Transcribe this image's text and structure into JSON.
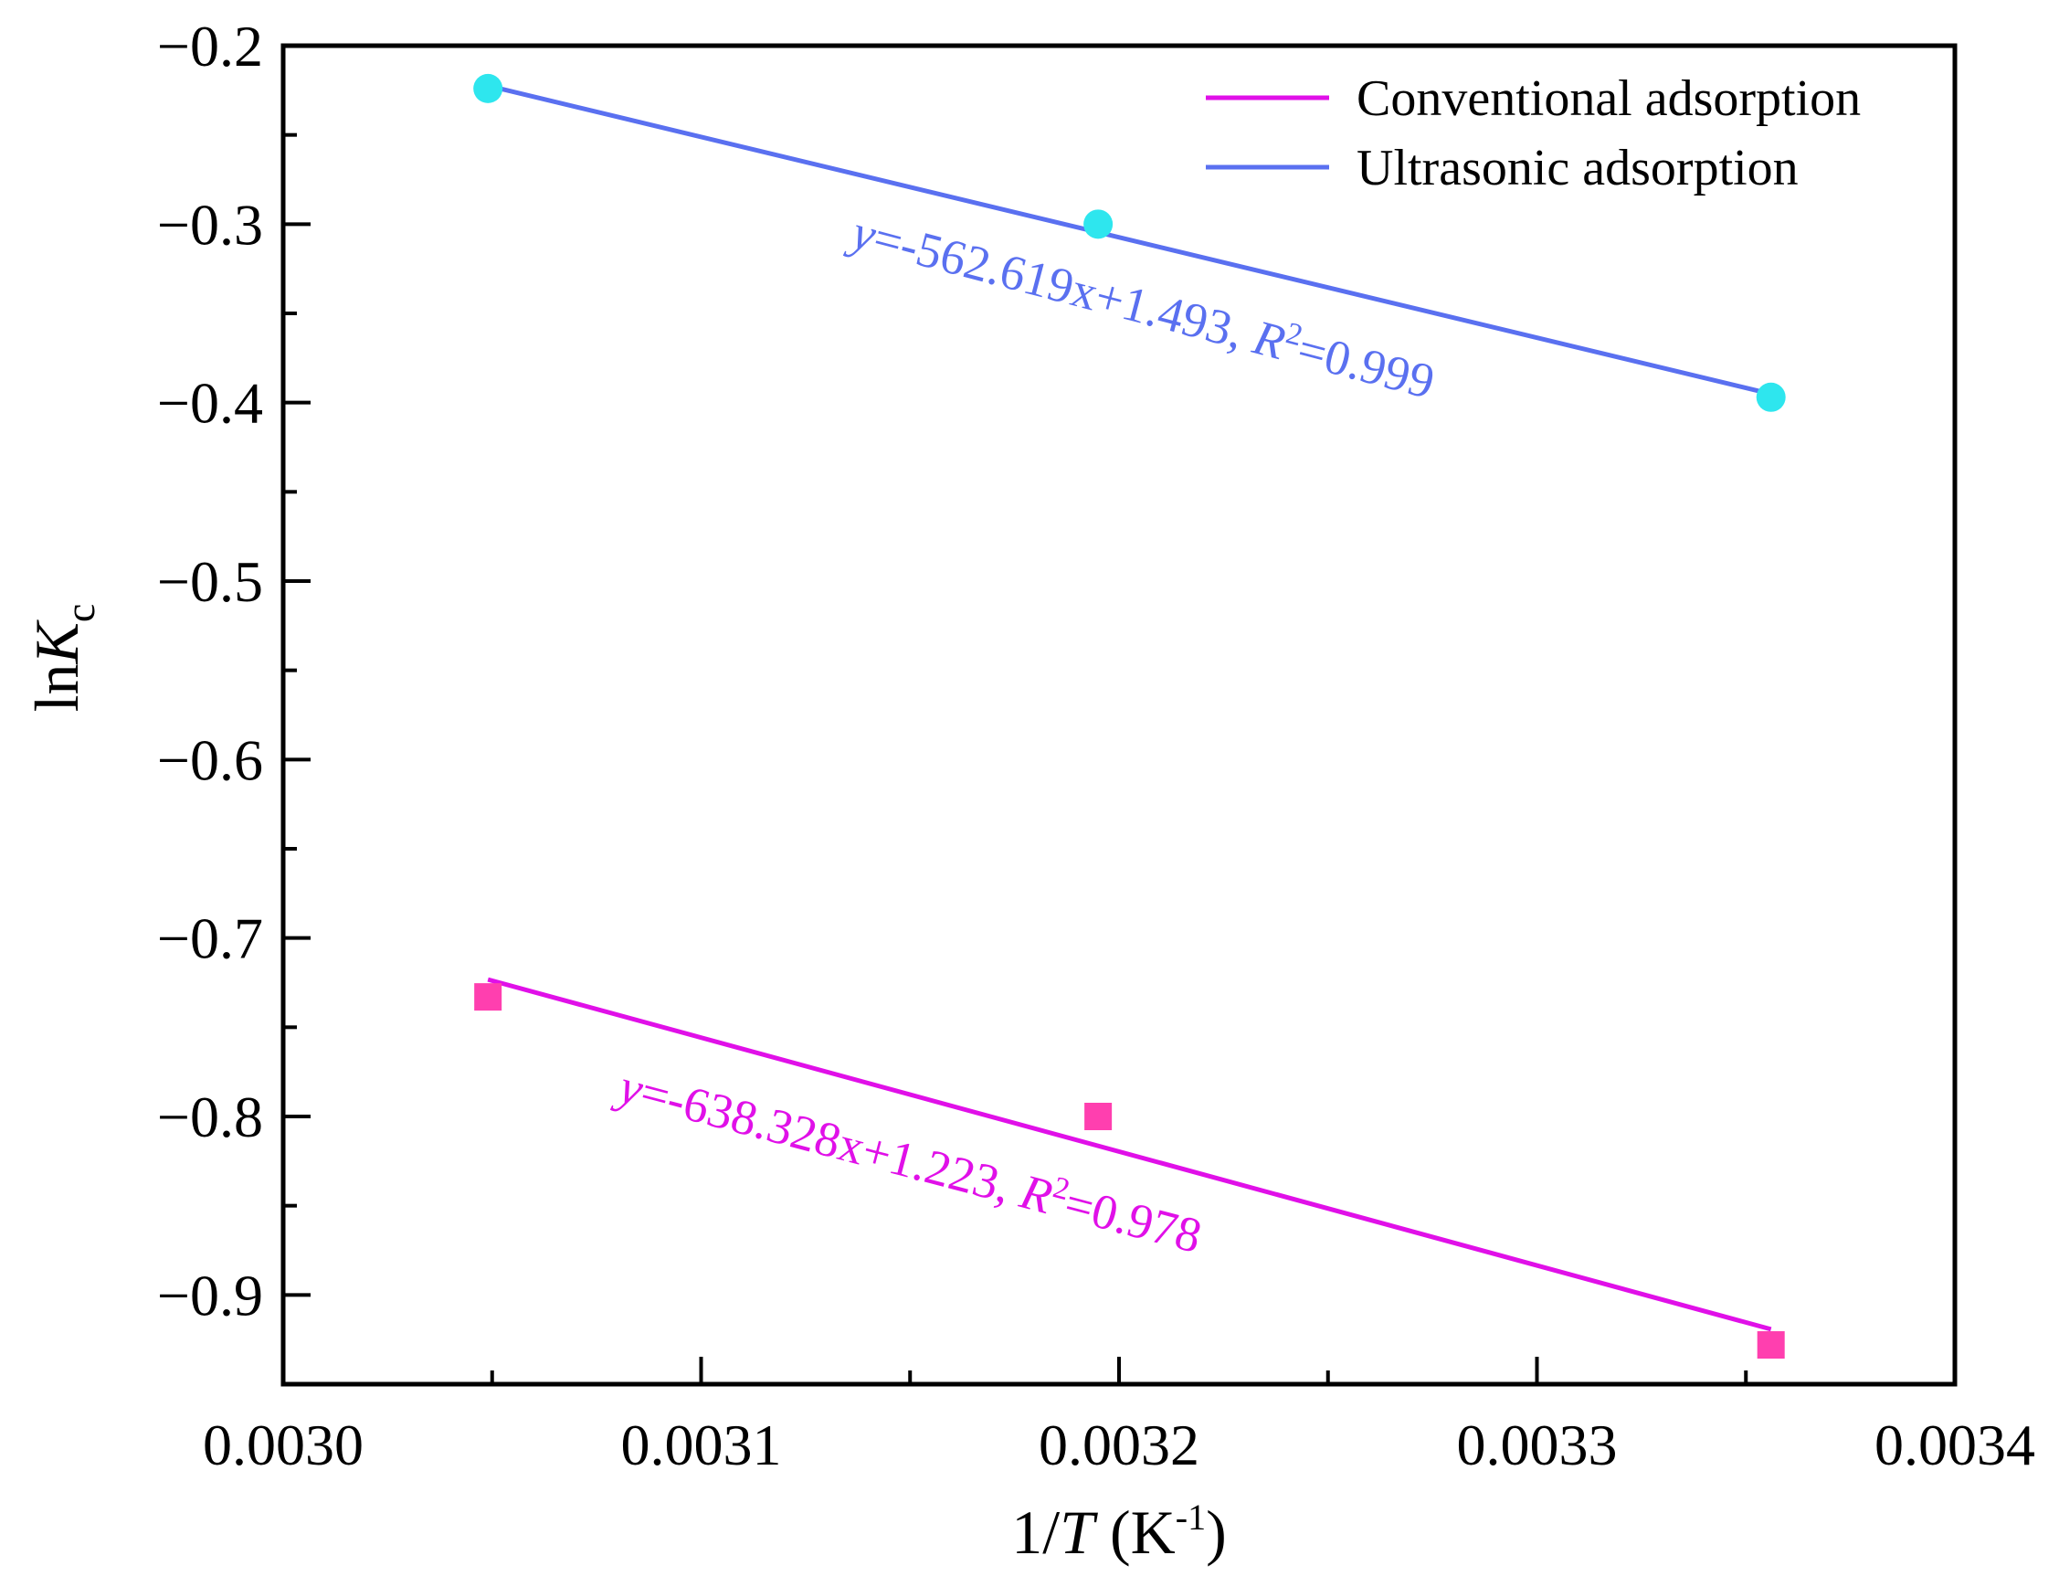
{
  "chart_data": {
    "type": "scatter",
    "title": "",
    "xlabel": {
      "prefix": "1/",
      "var": "T",
      "unit_open": " (K",
      "unit_sup": "-1",
      "unit_close": ")"
    },
    "ylabel": {
      "prefix": "ln",
      "var": "K",
      "sub": "c"
    },
    "xlim": [
      0.003,
      0.0034
    ],
    "ylim": [
      -0.95,
      -0.2
    ],
    "x_ticks": [
      0.003,
      0.0031,
      0.0032,
      0.0033,
      0.0034
    ],
    "x_tick_labels": [
      "0.0030",
      "0.0031",
      "0.0032",
      "0.0033",
      "0.0034"
    ],
    "y_ticks": [
      -0.2,
      -0.3,
      -0.4,
      -0.5,
      -0.6,
      -0.7,
      -0.8,
      -0.9
    ],
    "y_tick_labels": [
      "−0.2",
      "−0.3",
      "−0.4",
      "−0.5",
      "−0.6",
      "−0.7",
      "−0.8",
      "−0.9"
    ],
    "grid": false,
    "legend_position": "top-right",
    "series": [
      {
        "name": "Conventional adsorption",
        "marker": "square",
        "marker_color": "#ff3faf",
        "line_color": "#e010e8",
        "x": [
          0.003049,
          0.003195,
          0.003356
        ],
        "y": [
          -0.733,
          -0.8,
          -0.928
        ],
        "fit": {
          "slope": -638.328,
          "intercept": 1.223
        },
        "equation": {
          "lhs": "y",
          "mid": "=-638.328x+1.223, ",
          "r": "R",
          "r_sup": "2",
          "rhs": "=0.978"
        }
      },
      {
        "name": "Ultrasonic adsorption",
        "marker": "circle",
        "marker_color": "#2ee6ee",
        "line_color": "#5a70f0",
        "x": [
          0.003049,
          0.003195,
          0.003356
        ],
        "y": [
          -0.224,
          -0.3,
          -0.397
        ],
        "fit": {
          "slope": -562.619,
          "intercept": 1.493
        },
        "equation": {
          "lhs": "y",
          "mid": "=-562.619x+1.493, ",
          "r": "R",
          "r_sup": "2",
          "rhs": "=0.999"
        }
      }
    ]
  }
}
